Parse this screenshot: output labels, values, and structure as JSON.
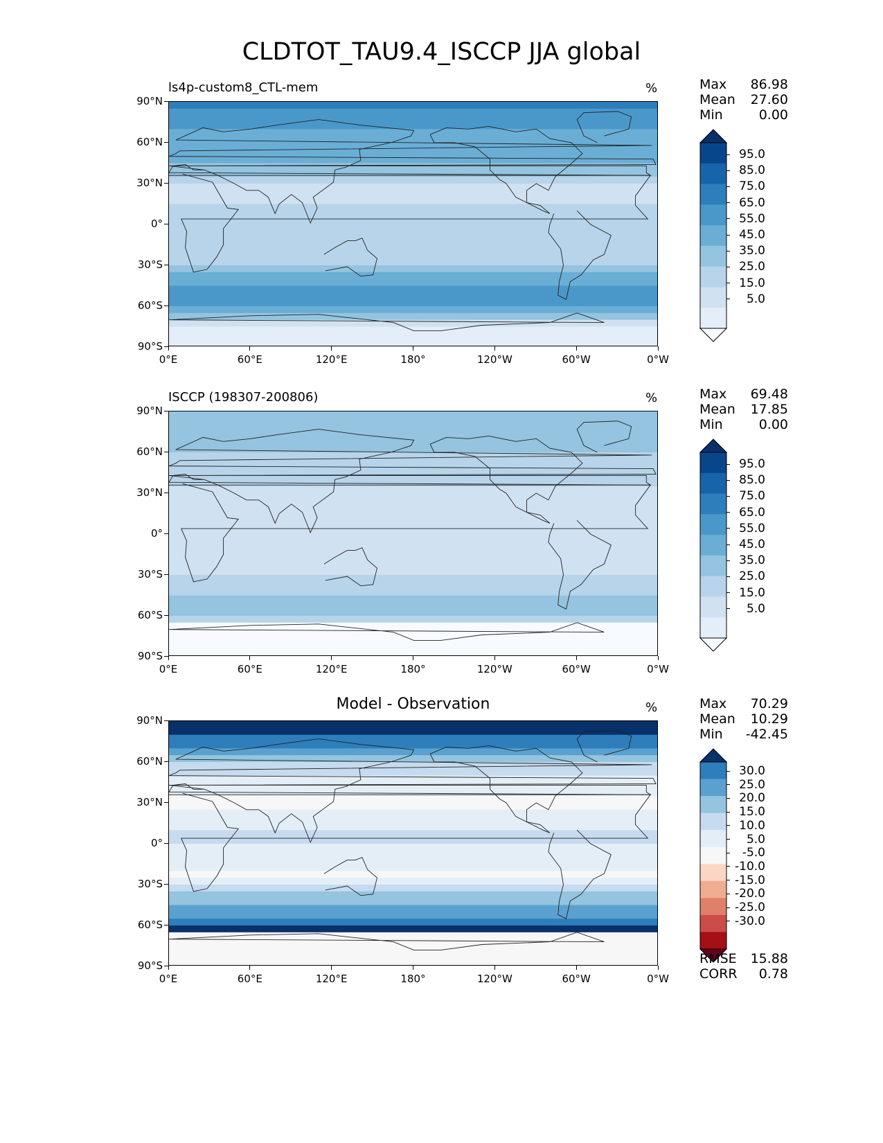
{
  "figure_title": "CLDTOT_TAU9.4_ISCCP JJA global",
  "icon": "colorbar-extend-arrows",
  "chart_data": [
    {
      "type": "heatmap",
      "panel": "test",
      "title": "ls4p-custom8_CTL-mem",
      "units": "%",
      "x_ticks": [
        "0°E",
        "60°E",
        "120°E",
        "180°",
        "120°W",
        "60°W",
        "0°W"
      ],
      "y_ticks": [
        "90°N",
        "60°N",
        "30°N",
        "0°",
        "30°S",
        "60°S",
        "90°S"
      ],
      "stats": {
        "max_label": "Max",
        "max": "86.98",
        "mean_label": "Mean",
        "mean": "27.60",
        "min_label": "Min",
        "min": "0.00"
      },
      "colorbar": {
        "labels": [
          "95.0",
          "85.0",
          "75.0",
          "65.0",
          "55.0",
          "45.0",
          "35.0",
          "25.0",
          "15.0",
          "5.0"
        ],
        "levels": [
          0,
          5,
          10,
          20,
          30,
          40,
          50,
          60,
          70,
          80,
          90,
          100
        ],
        "colors": [
          "#f7fbff",
          "#e3eef9",
          "#d0e1f2",
          "#b7d4ea",
          "#94c4df",
          "#6aaed6",
          "#4a98c9",
          "#2e7ebc",
          "#1764ab",
          "#08468b",
          "#08306b"
        ]
      },
      "zonal_profile": [
        {
          "lat": 85,
          "value": 60
        },
        {
          "lat": 72,
          "value": 50
        },
        {
          "lat": 58,
          "value": 45
        },
        {
          "lat": 45,
          "value": 40
        },
        {
          "lat": 30,
          "value": 20
        },
        {
          "lat": 15,
          "value": 18
        },
        {
          "lat": 5,
          "value": 30
        },
        {
          "lat": -10,
          "value": 20
        },
        {
          "lat": -25,
          "value": 20
        },
        {
          "lat": -40,
          "value": 45
        },
        {
          "lat": -55,
          "value": 55
        },
        {
          "lat": -65,
          "value": 40
        },
        {
          "lat": -75,
          "value": 5
        }
      ]
    },
    {
      "type": "heatmap",
      "panel": "reference",
      "title": "ISCCP (198307-200806)",
      "units": "%",
      "x_ticks": [
        "0°E",
        "60°E",
        "120°E",
        "180°",
        "120°W",
        "60°W",
        "0°W"
      ],
      "y_ticks": [
        "90°N",
        "60°N",
        "30°N",
        "0°",
        "30°S",
        "60°S",
        "90°S"
      ],
      "stats": {
        "max_label": "Max",
        "max": "69.48",
        "mean_label": "Mean",
        "mean": "17.85",
        "min_label": "Min",
        "min": "0.00"
      },
      "colorbar": {
        "labels": [
          "95.0",
          "85.0",
          "75.0",
          "65.0",
          "55.0",
          "45.0",
          "35.0",
          "25.0",
          "15.0",
          "5.0"
        ],
        "levels": [
          0,
          5,
          10,
          20,
          30,
          40,
          50,
          60,
          70,
          80,
          90,
          100
        ],
        "colors": [
          "#f7fbff",
          "#e3eef9",
          "#d0e1f2",
          "#b7d4ea",
          "#94c4df",
          "#6aaed6",
          "#4a98c9",
          "#2e7ebc",
          "#1764ab",
          "#08468b",
          "#08306b"
        ]
      },
      "zonal_profile": [
        {
          "lat": 85,
          "value": 35
        },
        {
          "lat": 72,
          "value": 30
        },
        {
          "lat": 58,
          "value": 30
        },
        {
          "lat": 45,
          "value": 28
        },
        {
          "lat": 30,
          "value": 15
        },
        {
          "lat": 15,
          "value": 15
        },
        {
          "lat": 5,
          "value": 20
        },
        {
          "lat": -10,
          "value": 15
        },
        {
          "lat": -25,
          "value": 18
        },
        {
          "lat": -40,
          "value": 25
        },
        {
          "lat": -55,
          "value": 35
        },
        {
          "lat": -62,
          "value": 30
        },
        {
          "lat": -68,
          "value": 0
        }
      ]
    },
    {
      "type": "heatmap",
      "panel": "difference",
      "title": "Model - Observation",
      "units": "%",
      "x_ticks": [
        "0°E",
        "60°E",
        "120°E",
        "180°",
        "120°W",
        "60°W",
        "0°W"
      ],
      "y_ticks": [
        "90°N",
        "60°N",
        "30°N",
        "0°",
        "30°S",
        "60°S",
        "90°S"
      ],
      "stats": {
        "max_label": "Max",
        "max": "70.29",
        "mean_label": "Mean",
        "mean": "10.29",
        "min_label": "Min",
        "min": "-42.45"
      },
      "extra_stats": {
        "rmse_label": "RMSE",
        "rmse": "15.88",
        "corr_label": "CORR",
        "corr": "0.78"
      },
      "colorbar": {
        "labels": [
          "30.0",
          "25.0",
          "20.0",
          "15.0",
          "10.0",
          "5.0",
          "-5.0",
          "-10.0",
          "-15.0",
          "-20.0",
          "-25.0",
          "-30.0"
        ],
        "levels": [
          -35,
          -30,
          -25,
          -20,
          -15,
          -10,
          -5,
          5,
          10,
          15,
          20,
          25,
          30,
          35
        ],
        "colors": [
          "#67001f",
          "#a50f15",
          "#cb4c48",
          "#e0806a",
          "#f1ad8f",
          "#fbd6c4",
          "#f7f7f7",
          "#e3eef7",
          "#c6dbef",
          "#94c4df",
          "#5aa1cf",
          "#2e7ebc",
          "#08306b"
        ]
      },
      "zonal_profile": [
        {
          "lat": 85,
          "value": 33
        },
        {
          "lat": 72,
          "value": 25
        },
        {
          "lat": 58,
          "value": 12
        },
        {
          "lat": 45,
          "value": 8
        },
        {
          "lat": 30,
          "value": 3
        },
        {
          "lat": 15,
          "value": 8
        },
        {
          "lat": 5,
          "value": 12
        },
        {
          "lat": -10,
          "value": 6
        },
        {
          "lat": -25,
          "value": 4
        },
        {
          "lat": -40,
          "value": 18
        },
        {
          "lat": -55,
          "value": 22
        },
        {
          "lat": -62,
          "value": 33
        },
        {
          "lat": -68,
          "value": 0
        }
      ]
    }
  ]
}
